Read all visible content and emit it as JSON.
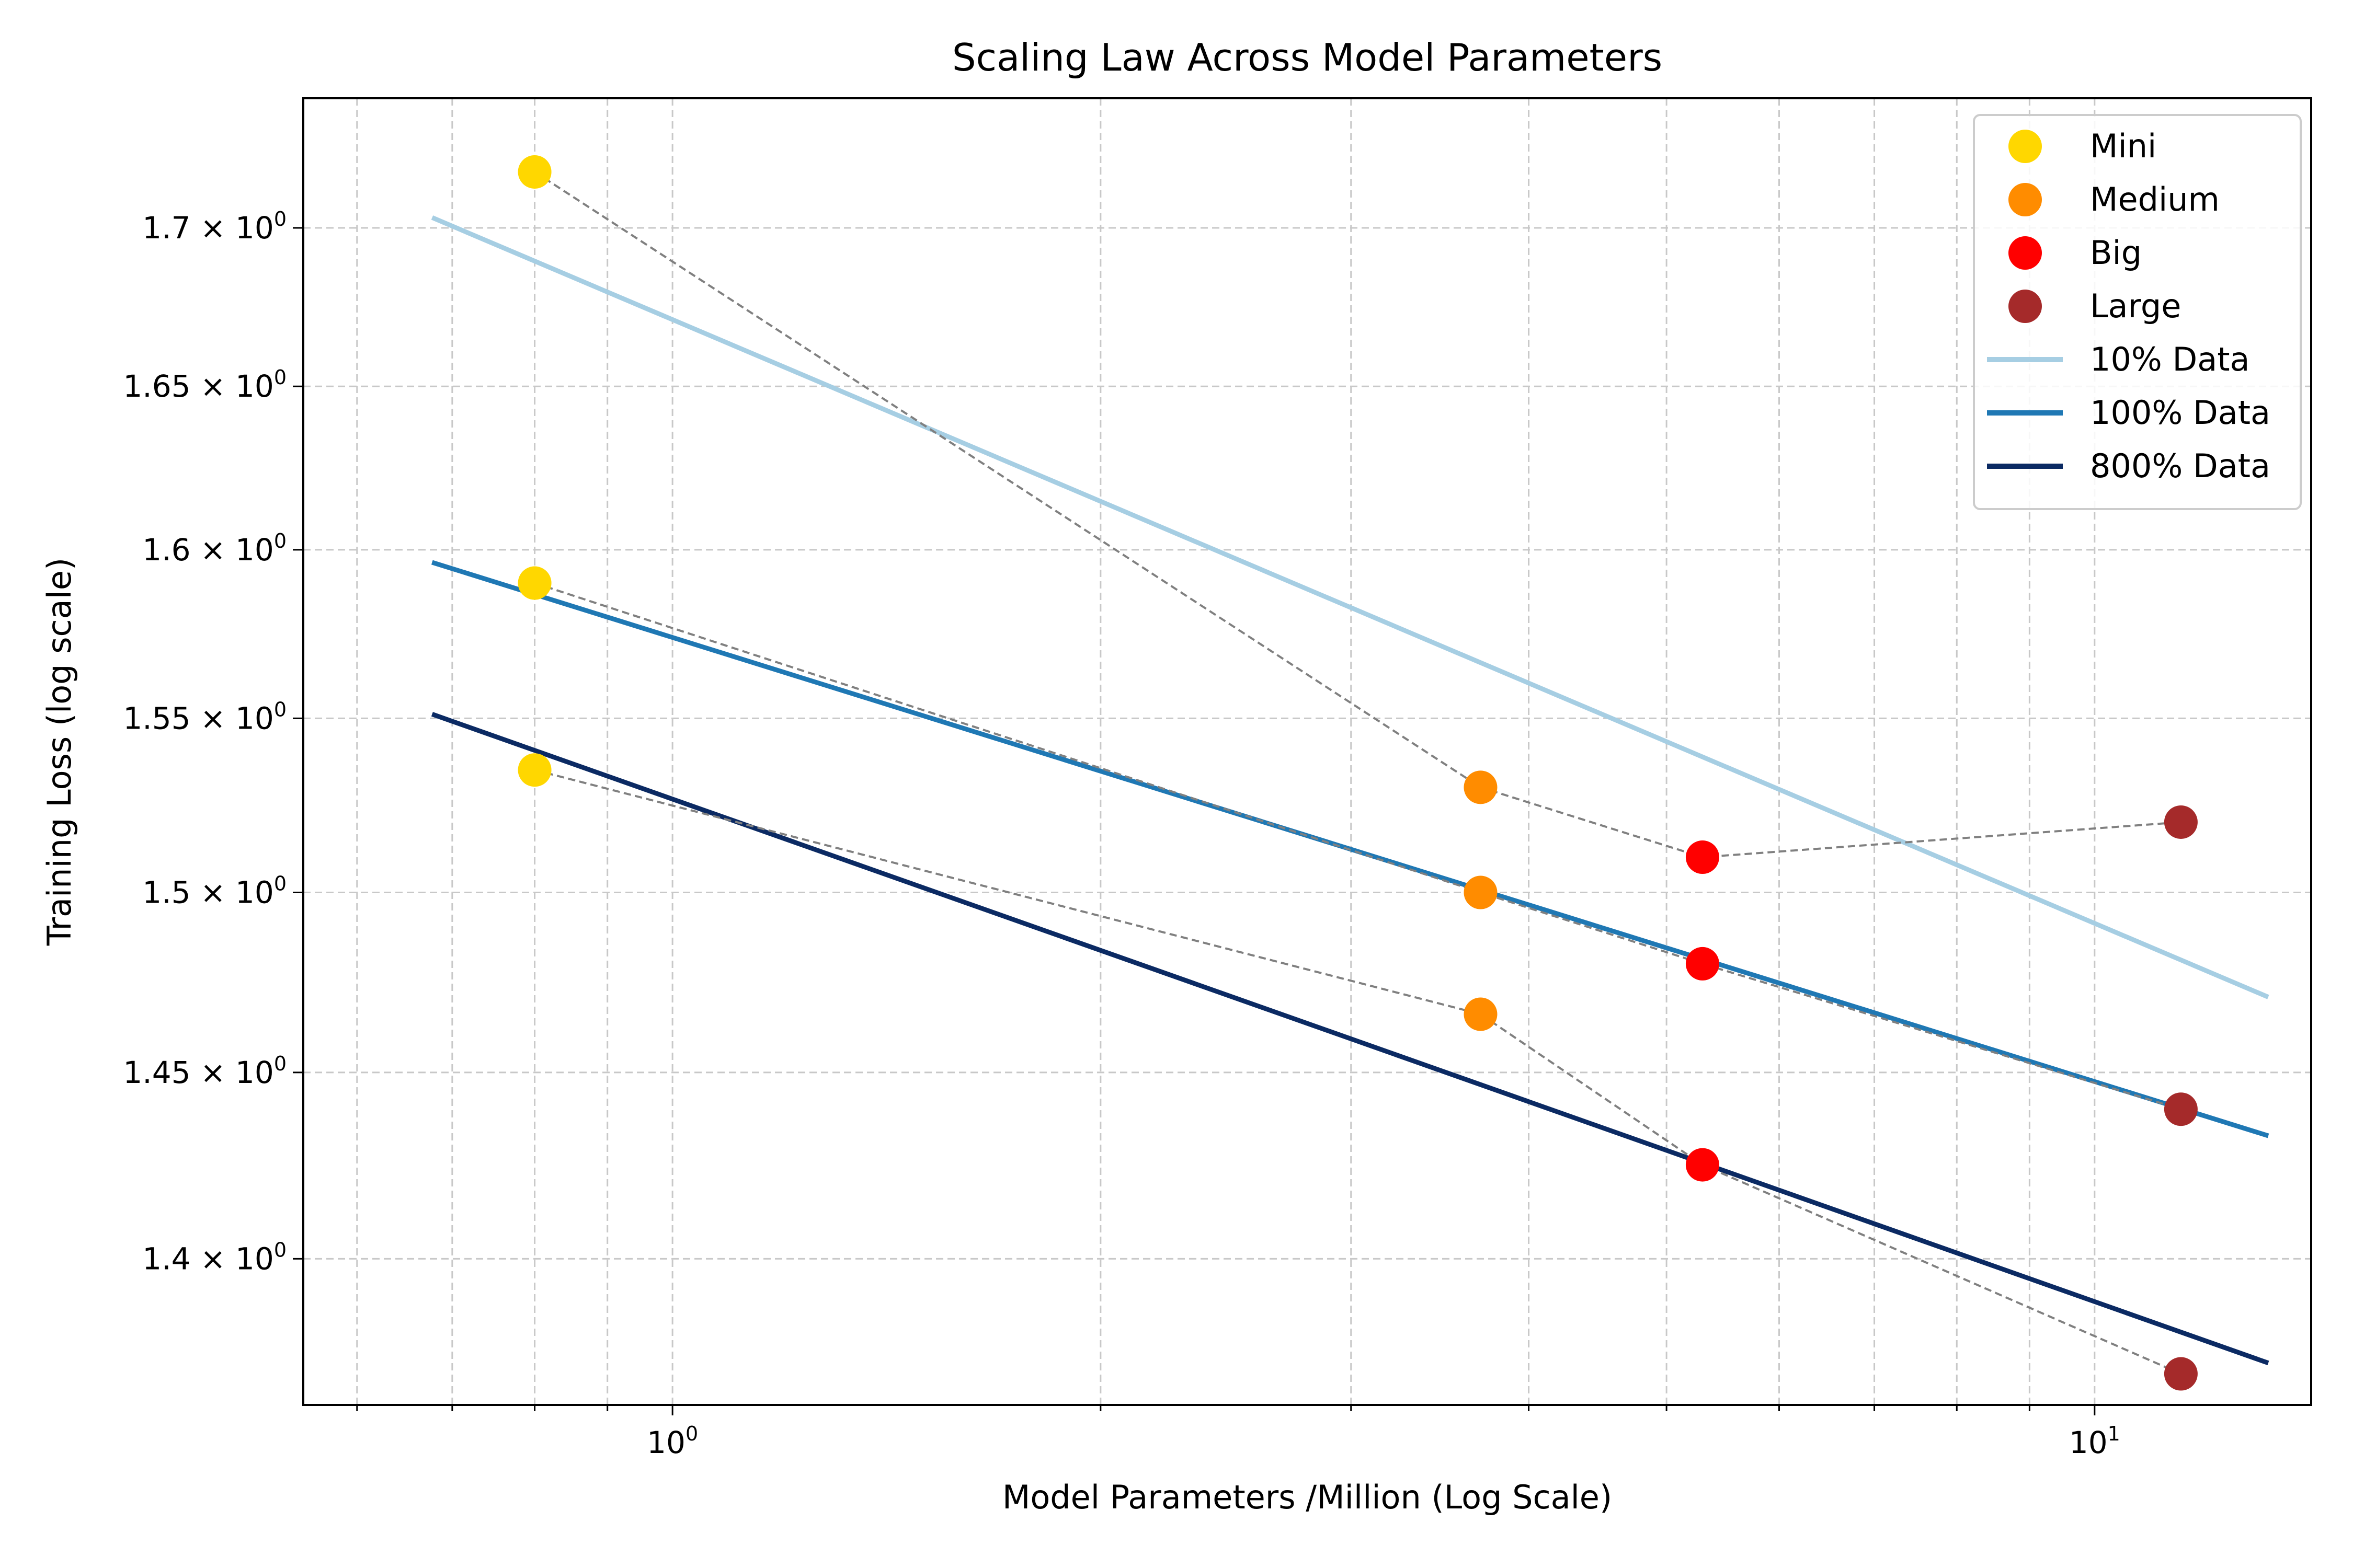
{
  "chart_data": {
    "type": "scatter",
    "title": "Scaling Law Across Model Parameters",
    "xlabel": "Model Parameters /Million (Log Scale)",
    "ylabel": "Training Loss (log scale)",
    "x_scale": "log",
    "y_scale": "log",
    "xlim": [
      0.55,
      14.2
    ],
    "ylim": [
      1.362,
      1.742
    ],
    "grid": true,
    "legend_position": "top-right",
    "x_major_ticks": [
      {
        "value": 1,
        "label_base": "10",
        "label_exp": "0"
      },
      {
        "value": 10,
        "label_base": "10",
        "label_exp": "1"
      }
    ],
    "x_minor_ticks": [
      0.6,
      0.7,
      0.8,
      0.9,
      2,
      3,
      4,
      5,
      6,
      7,
      8,
      9
    ],
    "y_ticks": [
      {
        "value": 1.4,
        "label_main": "1.4 × 10",
        "label_exp": "0"
      },
      {
        "value": 1.45,
        "label_main": "1.45 × 10",
        "label_exp": "0"
      },
      {
        "value": 1.5,
        "label_main": "1.5 × 10",
        "label_exp": "0"
      },
      {
        "value": 1.55,
        "label_main": "1.55 × 10",
        "label_exp": "0"
      },
      {
        "value": 1.6,
        "label_main": "1.6 × 10",
        "label_exp": "0"
      },
      {
        "value": 1.65,
        "label_main": "1.65 × 10",
        "label_exp": "0"
      },
      {
        "value": 1.7,
        "label_main": "1.7 × 10",
        "label_exp": "0"
      }
    ],
    "model_sizes": [
      {
        "name": "Mini",
        "x": 0.8,
        "color": "#FFD700"
      },
      {
        "name": "Medium",
        "x": 3.7,
        "color": "#FF8C00"
      },
      {
        "name": "Big",
        "x": 5.3,
        "color": "#FF0000"
      },
      {
        "name": "Large",
        "x": 11.5,
        "color": "#A52A2A"
      }
    ],
    "series": [
      {
        "name": "10% Data",
        "color": "#a6cee3",
        "losses": [
          1.718,
          1.53,
          1.51,
          1.52
        ],
        "fit": {
          "x": [
            0.68,
            13.2
          ],
          "y": [
            1.703,
            1.471
          ]
        }
      },
      {
        "name": "100% Data",
        "color": "#1f78b4",
        "losses": [
          1.59,
          1.5,
          1.48,
          1.44
        ],
        "fit": {
          "x": [
            0.68,
            13.2
          ],
          "y": [
            1.596,
            1.433
          ]
        }
      },
      {
        "name": "800% Data",
        "color": "#0b2a63",
        "losses": [
          1.535,
          1.466,
          1.425,
          1.37
        ],
        "fit": {
          "x": [
            0.68,
            13.2
          ],
          "y": [
            1.551,
            1.373
          ]
        }
      }
    ],
    "connector_style": {
      "color": "#808080",
      "dash": "dashed"
    }
  }
}
